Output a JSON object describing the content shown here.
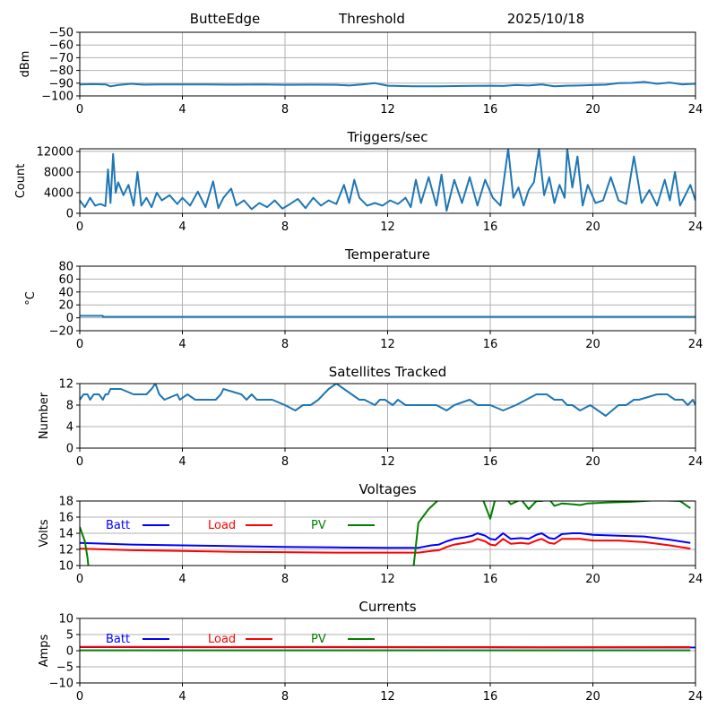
{
  "header": {
    "station": "ButteEdge",
    "mode": "Threshold",
    "date": "2025/10/18"
  },
  "colors": {
    "series_default": "#1f77b4",
    "batt": "#0000ff",
    "load": "#ff0000",
    "pv": "#008000",
    "grid": "#b0b0b0"
  },
  "chart_data": [
    {
      "id": "threshold",
      "type": "line",
      "title": "",
      "xlabel": "",
      "ylabel": "dBm",
      "xlim": [
        0,
        24
      ],
      "ylim": [
        -100,
        -50
      ],
      "xticks": [
        0,
        4,
        8,
        12,
        16,
        20,
        24
      ],
      "yticks": [
        -100,
        -90,
        -80,
        -70,
        -60,
        -50
      ],
      "ytick_labels": [
        "−100",
        "−90",
        "−80",
        "−70",
        "−60",
        "−50"
      ],
      "grid": true,
      "series": [
        {
          "name": "Threshold",
          "color": "#1f77b4",
          "x": [
            0,
            0.5,
            1,
            1.2,
            1.5,
            2,
            2.5,
            3,
            4,
            5,
            6,
            7,
            8,
            9,
            10,
            10.5,
            11,
            11.5,
            12,
            13,
            14,
            15,
            16,
            16.5,
            17,
            17.5,
            18,
            18.5,
            19,
            19.5,
            20,
            20.5,
            21,
            21.5,
            22,
            22.5,
            23,
            23.5,
            24
          ],
          "y": [
            -91,
            -90.8,
            -91,
            -92.5,
            -91.5,
            -90.5,
            -91.2,
            -91,
            -91,
            -91,
            -91.2,
            -91,
            -91.3,
            -91.2,
            -91.3,
            -91.8,
            -91,
            -90,
            -92,
            -92.5,
            -92.5,
            -92.2,
            -92,
            -92.2,
            -91.5,
            -91.8,
            -91,
            -92.5,
            -92,
            -91.8,
            -91.5,
            -91.2,
            -90,
            -89.8,
            -89,
            -90.5,
            -89.5,
            -91,
            -90.5
          ]
        }
      ]
    },
    {
      "id": "triggers",
      "type": "line",
      "title": "Triggers/sec",
      "xlabel": "",
      "ylabel": "Count",
      "xlim": [
        0,
        24
      ],
      "ylim": [
        0,
        12500
      ],
      "xticks": [
        0,
        4,
        8,
        12,
        16,
        20,
        24
      ],
      "yticks": [
        0,
        4000,
        8000,
        12000
      ],
      "ytick_labels": [
        "0",
        "4000",
        "8000",
        "12000"
      ],
      "grid": true,
      "series": [
        {
          "name": "Triggers",
          "color": "#1f77b4",
          "x": [
            0,
            0.2,
            0.4,
            0.6,
            0.8,
            1.0,
            1.1,
            1.2,
            1.3,
            1.4,
            1.5,
            1.7,
            1.9,
            2.1,
            2.25,
            2.4,
            2.6,
            2.8,
            3.0,
            3.2,
            3.5,
            3.8,
            4.0,
            4.3,
            4.6,
            4.9,
            5.2,
            5.4,
            5.6,
            5.9,
            6.1,
            6.4,
            6.7,
            7.0,
            7.3,
            7.6,
            7.9,
            8.2,
            8.5,
            8.8,
            9.1,
            9.4,
            9.7,
            10.0,
            10.3,
            10.5,
            10.7,
            10.9,
            11.2,
            11.5,
            11.8,
            12.1,
            12.4,
            12.7,
            12.9,
            13.1,
            13.3,
            13.6,
            13.9,
            14.1,
            14.3,
            14.6,
            14.9,
            15.2,
            15.5,
            15.8,
            16.1,
            16.4,
            16.7,
            16.9,
            17.1,
            17.3,
            17.5,
            17.7,
            17.9,
            18.1,
            18.3,
            18.5,
            18.7,
            18.9,
            19.0,
            19.2,
            19.4,
            19.6,
            19.8,
            20.1,
            20.4,
            20.7,
            21.0,
            21.3,
            21.6,
            21.9,
            22.2,
            22.5,
            22.8,
            23.0,
            23.2,
            23.4,
            23.6,
            23.8,
            24
          ],
          "y": [
            2500,
            1200,
            3000,
            1500,
            1800,
            1400,
            8500,
            2000,
            11500,
            4000,
            6000,
            3500,
            5500,
            1500,
            8000,
            1500,
            3000,
            1200,
            4000,
            2500,
            3500,
            1800,
            3000,
            1500,
            4200,
            1200,
            6200,
            1000,
            3000,
            4800,
            1500,
            2500,
            800,
            2000,
            1200,
            2500,
            900,
            1800,
            2800,
            1000,
            3000,
            1500,
            2500,
            1800,
            5500,
            2000,
            6500,
            3000,
            1500,
            2000,
            1500,
            2500,
            1800,
            3000,
            1200,
            6500,
            2000,
            7000,
            1500,
            7500,
            500,
            6500,
            2000,
            7000,
            1500,
            6500,
            3000,
            1500,
            12500,
            3000,
            5000,
            1500,
            4500,
            6000,
            12500,
            3500,
            7000,
            2000,
            5500,
            3000,
            12500,
            5000,
            11000,
            1500,
            5500,
            2000,
            2500,
            7000,
            2500,
            1800,
            11000,
            2000,
            4500,
            1500,
            6500,
            2500,
            8000,
            1500,
            3500,
            5500,
            2500
          ]
        }
      ]
    },
    {
      "id": "temperature",
      "type": "line",
      "title": "Temperature",
      "xlabel": "",
      "ylabel": "°C",
      "xlim": [
        0,
        24
      ],
      "ylim": [
        -20,
        80
      ],
      "xticks": [
        0,
        4,
        8,
        12,
        16,
        20,
        24
      ],
      "yticks": [
        -20,
        0,
        20,
        40,
        60,
        80
      ],
      "ytick_labels": [
        "−20",
        "0",
        "20",
        "40",
        "60",
        "80"
      ],
      "grid": true,
      "series": [
        {
          "name": "Temperature",
          "color": "#1f77b4",
          "x": [
            0,
            0.9,
            0.9,
            24
          ],
          "y": [
            3,
            3,
            1.5,
            1.5
          ]
        }
      ]
    },
    {
      "id": "satellites",
      "type": "line",
      "title": "Satellites Tracked",
      "xlabel": "",
      "ylabel": "Number",
      "xlim": [
        0,
        24
      ],
      "ylim": [
        0,
        12
      ],
      "xticks": [
        0,
        4,
        8,
        12,
        16,
        20,
        24
      ],
      "yticks": [
        0,
        4,
        8,
        12
      ],
      "ytick_labels": [
        "0",
        "4",
        "8",
        "12"
      ],
      "grid": true,
      "series": [
        {
          "name": "Satellites",
          "color": "#1f77b4",
          "x": [
            0,
            0.15,
            0.3,
            0.4,
            0.55,
            0.75,
            0.9,
            1.0,
            1.1,
            1.2,
            1.6,
            2.1,
            2.6,
            2.8,
            2.95,
            3.1,
            3.3,
            3.8,
            3.9,
            4.2,
            4.5,
            5.3,
            5.5,
            5.6,
            6.3,
            6.5,
            6.7,
            6.9,
            7.5,
            8.0,
            8.4,
            8.7,
            9.0,
            9.3,
            9.5,
            9.7,
            10.0,
            10.3,
            10.6,
            10.9,
            11.1,
            11.5,
            11.7,
            11.9,
            12.2,
            12.4,
            12.7,
            13.0,
            13.9,
            14.3,
            14.6,
            15.2,
            15.5,
            15.7,
            16.0,
            16.5,
            17.0,
            17.4,
            17.8,
            18.2,
            18.5,
            18.8,
            19.0,
            19.2,
            19.5,
            19.9,
            20.2,
            20.5,
            21.0,
            21.3,
            21.6,
            21.8,
            22.5,
            22.9,
            23.2,
            23.5,
            23.7,
            23.9,
            24
          ],
          "y": [
            9,
            10,
            10,
            9,
            10,
            10,
            9,
            10,
            10,
            11,
            11,
            10,
            10,
            11,
            12,
            10,
            9,
            10,
            9,
            10,
            9,
            9,
            10,
            11,
            10,
            9,
            10,
            9,
            9,
            8,
            7,
            8,
            8,
            9,
            10,
            11,
            12,
            11,
            10,
            9,
            9,
            8,
            9,
            9,
            8,
            9,
            8,
            8,
            8,
            7,
            8,
            9,
            8,
            8,
            8,
            7,
            8,
            9,
            10,
            10,
            9,
            9,
            8,
            8,
            7,
            8,
            7,
            6,
            8,
            8,
            9,
            9,
            10,
            10,
            9,
            9,
            8,
            9,
            8
          ]
        }
      ]
    },
    {
      "id": "voltages",
      "type": "line",
      "title": "Voltages",
      "xlabel": "",
      "ylabel": "Volts",
      "xlim": [
        0,
        24
      ],
      "ylim": [
        10,
        18
      ],
      "xticks": [
        0,
        4,
        8,
        12,
        16,
        20,
        24
      ],
      "yticks": [
        10,
        12,
        14,
        16,
        18
      ],
      "ytick_labels": [
        "10",
        "12",
        "14",
        "16",
        "18"
      ],
      "grid": true,
      "legend": {
        "placement": "top-left-inline",
        "entries": [
          "Batt",
          "Load",
          "PV"
        ]
      },
      "series": [
        {
          "name": "Batt",
          "color": "#0000ff",
          "x": [
            0,
            2,
            4,
            6,
            8,
            10,
            12,
            13.2,
            13.7,
            14.0,
            14.3,
            14.6,
            15.0,
            15.3,
            15.5,
            15.8,
            16.0,
            16.2,
            16.5,
            16.8,
            17.2,
            17.5,
            17.8,
            18.0,
            18.3,
            18.5,
            18.8,
            19.2,
            19.5,
            20.0,
            21.0,
            22.0,
            23.0,
            23.8
          ],
          "y": [
            12.8,
            12.6,
            12.5,
            12.4,
            12.3,
            12.25,
            12.2,
            12.2,
            12.5,
            12.6,
            13.0,
            13.3,
            13.5,
            13.7,
            14.0,
            13.7,
            13.3,
            13.2,
            14.0,
            13.3,
            13.4,
            13.3,
            13.8,
            14.0,
            13.4,
            13.3,
            13.9,
            14.0,
            14.0,
            13.8,
            13.7,
            13.6,
            13.2,
            12.8
          ]
        },
        {
          "name": "Load",
          "color": "#ff0000",
          "x": [
            0,
            2,
            4,
            6,
            8,
            10,
            12,
            13.2,
            13.7,
            14.0,
            14.3,
            14.6,
            15.0,
            15.3,
            15.5,
            15.8,
            16.0,
            16.2,
            16.5,
            16.8,
            17.2,
            17.5,
            17.8,
            18.0,
            18.3,
            18.5,
            18.8,
            19.2,
            19.5,
            20.0,
            21.0,
            22.0,
            23.0,
            23.8
          ],
          "y": [
            12.1,
            11.9,
            11.8,
            11.7,
            11.65,
            11.6,
            11.6,
            11.6,
            11.8,
            11.9,
            12.3,
            12.6,
            12.8,
            13.0,
            13.3,
            13.0,
            12.6,
            12.5,
            13.3,
            12.7,
            12.8,
            12.7,
            13.1,
            13.3,
            12.8,
            12.7,
            13.3,
            13.3,
            13.3,
            13.1,
            13.1,
            12.9,
            12.5,
            12.1
          ]
        },
        {
          "name": "PV",
          "color": "#008000",
          "x": [
            0,
            0.2,
            0.3,
            0.35,
            13.0,
            13.2,
            13.6,
            14.0,
            14.4,
            15.0,
            15.7,
            16.0,
            16.2,
            16.5,
            16.8,
            17.2,
            17.5,
            17.8,
            18.0,
            18.3,
            18.5,
            18.8,
            19.2,
            19.5,
            19.8,
            20.5,
            21.5,
            22.5,
            23.4,
            23.8
          ],
          "y": [
            14.8,
            13.0,
            11.0,
            9.5,
            9.5,
            15.3,
            17.0,
            18.2,
            18.5,
            18.5,
            18.3,
            15.8,
            18.3,
            18.8,
            17.6,
            18.2,
            17.0,
            18.0,
            18.0,
            18.2,
            17.4,
            17.7,
            17.6,
            17.5,
            17.7,
            17.8,
            17.9,
            18.1,
            18.0,
            17.1
          ]
        }
      ]
    },
    {
      "id": "currents",
      "type": "line",
      "title": "Currents",
      "xlabel": "",
      "ylabel": "Amps",
      "xlim": [
        0,
        24
      ],
      "ylim": [
        -10,
        10
      ],
      "xticks": [
        0,
        4,
        8,
        12,
        16,
        20,
        24
      ],
      "yticks": [
        -10,
        -5,
        0,
        5,
        10
      ],
      "ytick_labels": [
        "−10",
        "−5",
        "0",
        "5",
        "10"
      ],
      "grid": true,
      "legend": {
        "placement": "top-left-inline",
        "entries": [
          "Batt",
          "Load",
          "PV"
        ]
      },
      "series": [
        {
          "name": "Batt",
          "color": "#0000ff",
          "x": [
            0,
            24
          ],
          "y": [
            1.1,
            1.0
          ]
        },
        {
          "name": "Load",
          "color": "#ff0000",
          "x": [
            0,
            8,
            16,
            18,
            23.8
          ],
          "y": [
            1.2,
            1.15,
            1.1,
            1.05,
            1.1
          ]
        },
        {
          "name": "PV",
          "color": "#008000",
          "x": [
            0,
            23.8
          ],
          "y": [
            0.1,
            0.1
          ]
        }
      ]
    }
  ]
}
